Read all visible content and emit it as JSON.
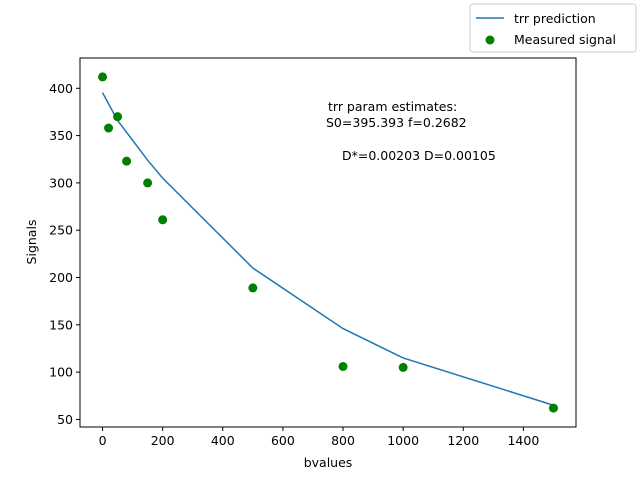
{
  "chart_data": {
    "type": "scatter",
    "xlabel": "bvalues",
    "ylabel": "Signals",
    "xlim": [
      -75,
      1575
    ],
    "ylim": [
      42,
      432
    ],
    "xticks": [
      0,
      200,
      400,
      600,
      800,
      1000,
      1200,
      1400
    ],
    "yticks": [
      50,
      100,
      150,
      200,
      250,
      300,
      350,
      400
    ],
    "grid": false,
    "legend_position": "top-right (outside axes)",
    "series": [
      {
        "name": "trr prediction",
        "kind": "line",
        "color": "#1f77b4",
        "x": [
          0,
          50,
          150,
          200,
          500,
          800,
          1000,
          1500
        ],
        "y": [
          395.4,
          366,
          324,
          305,
          210,
          146,
          115,
          65
        ]
      },
      {
        "name": "Measured signal",
        "kind": "scatter",
        "color": "#008000",
        "x": [
          0,
          20,
          50,
          80,
          150,
          200,
          500,
          800,
          1000,
          1500
        ],
        "y": [
          412,
          358,
          370,
          323,
          300,
          261,
          189,
          106,
          105,
          62
        ]
      }
    ],
    "annotations": [
      "trr param estimates:",
      "S0=395.393 f=0.2682",
      "D*=0.00203 D=0.00105"
    ]
  }
}
